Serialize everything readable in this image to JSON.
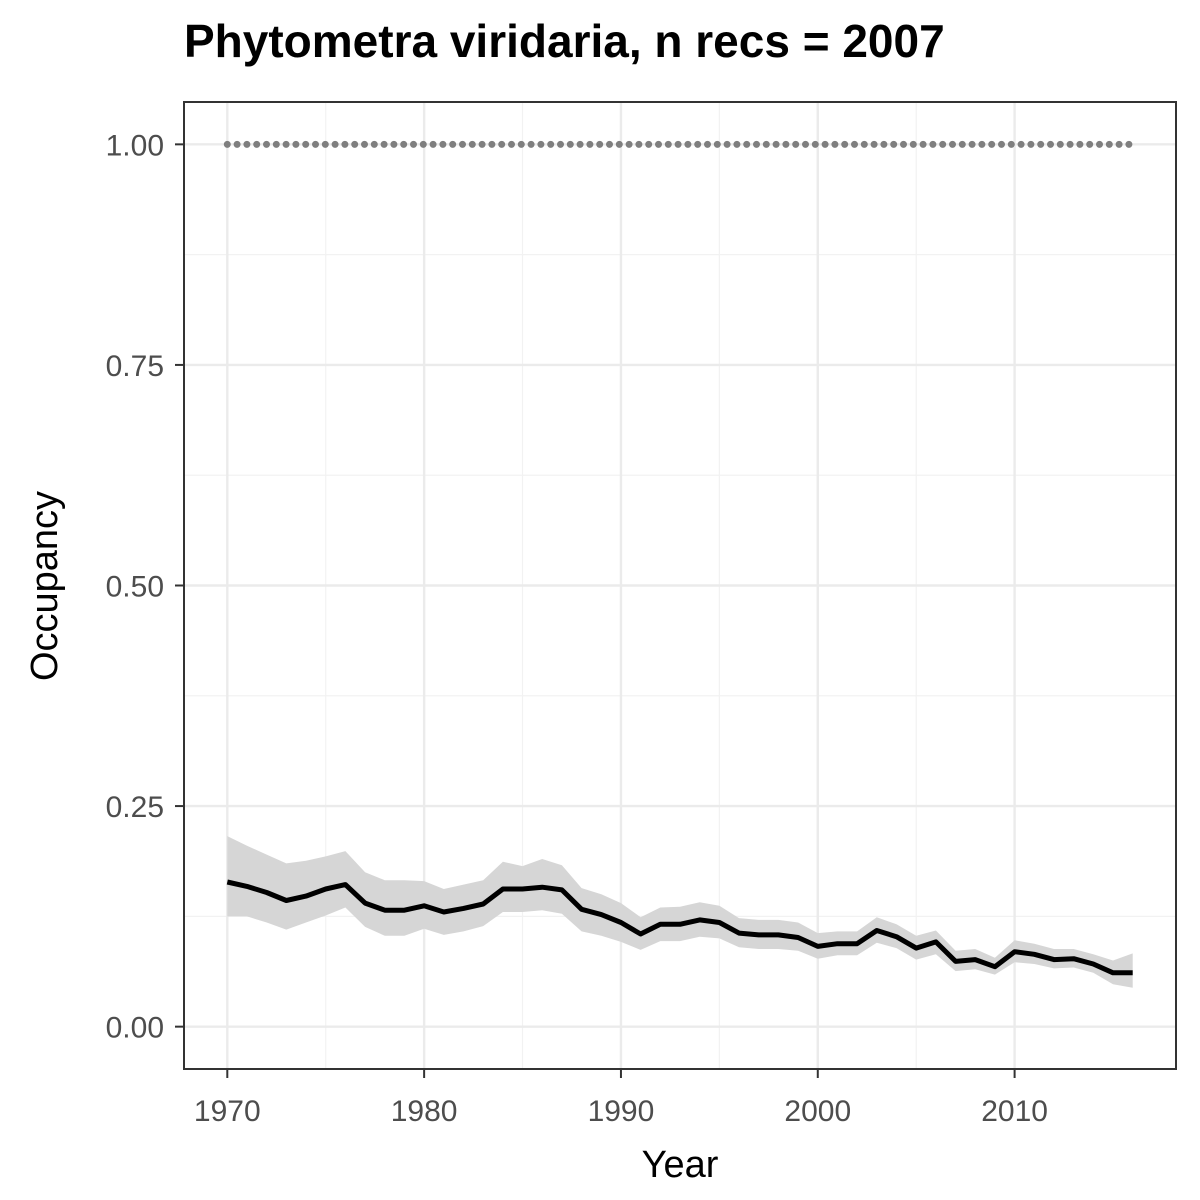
{
  "chart_data": {
    "type": "line",
    "title": "Phytometra viridaria, n recs = 2007",
    "xlabel": "Year",
    "ylabel": "Occupancy",
    "xlim": [
      1967.8,
      2018.2
    ],
    "ylim": [
      -0.048,
      1.048
    ],
    "x_ticks": [
      1970,
      1980,
      1990,
      2000,
      2010
    ],
    "x_tick_labels": [
      "1970",
      "1980",
      "1990",
      "2000",
      "2010"
    ],
    "y_ticks": [
      0,
      0.25,
      0.5,
      0.75,
      1.0
    ],
    "y_tick_labels": [
      "0.00",
      "0.25",
      "0.50",
      "0.75",
      "1.00"
    ],
    "grid": true,
    "x": [
      1970,
      1971,
      1972,
      1973,
      1974,
      1975,
      1976,
      1977,
      1978,
      1979,
      1980,
      1981,
      1982,
      1983,
      1984,
      1985,
      1986,
      1987,
      1988,
      1989,
      1990,
      1991,
      1992,
      1993,
      1994,
      1995,
      1996,
      1997,
      1998,
      1999,
      2000,
      2001,
      2002,
      2003,
      2004,
      2005,
      2006,
      2007,
      2008,
      2009,
      2010,
      2011,
      2012,
      2013,
      2014,
      2015,
      2016
    ],
    "series": [
      {
        "role": "mean",
        "color": "#000000",
        "values": [
          0.164,
          0.159,
          0.152,
          0.143,
          0.148,
          0.156,
          0.161,
          0.14,
          0.132,
          0.132,
          0.137,
          0.13,
          0.134,
          0.139,
          0.156,
          0.156,
          0.158,
          0.155,
          0.133,
          0.127,
          0.118,
          0.105,
          0.116,
          0.116,
          0.121,
          0.118,
          0.106,
          0.104,
          0.104,
          0.101,
          0.091,
          0.094,
          0.094,
          0.109,
          0.102,
          0.089,
          0.096,
          0.074,
          0.076,
          0.068,
          0.085,
          0.082,
          0.076,
          0.077,
          0.071,
          0.061,
          0.061
        ]
      },
      {
        "role": "ci_lower",
        "color": "#d6d6d6",
        "values": [
          0.125,
          0.125,
          0.118,
          0.11,
          0.118,
          0.126,
          0.135,
          0.113,
          0.103,
          0.103,
          0.111,
          0.104,
          0.108,
          0.114,
          0.13,
          0.13,
          0.132,
          0.128,
          0.108,
          0.103,
          0.096,
          0.087,
          0.097,
          0.097,
          0.102,
          0.1,
          0.09,
          0.088,
          0.088,
          0.086,
          0.077,
          0.081,
          0.081,
          0.095,
          0.089,
          0.076,
          0.082,
          0.063,
          0.065,
          0.059,
          0.073,
          0.071,
          0.066,
          0.067,
          0.061,
          0.048,
          0.044
        ]
      },
      {
        "role": "ci_upper",
        "color": "#d6d6d6",
        "values": [
          0.216,
          0.205,
          0.195,
          0.185,
          0.188,
          0.193,
          0.199,
          0.175,
          0.166,
          0.166,
          0.165,
          0.156,
          0.161,
          0.166,
          0.187,
          0.182,
          0.19,
          0.183,
          0.157,
          0.15,
          0.14,
          0.124,
          0.135,
          0.136,
          0.141,
          0.137,
          0.123,
          0.121,
          0.121,
          0.118,
          0.106,
          0.108,
          0.108,
          0.124,
          0.116,
          0.103,
          0.109,
          0.086,
          0.088,
          0.078,
          0.098,
          0.094,
          0.088,
          0.088,
          0.082,
          0.075,
          0.083
        ]
      },
      {
        "role": "reference",
        "color": "#7f7f7f",
        "style": "dotted",
        "values": [
          1,
          1,
          1,
          1,
          1,
          1,
          1,
          1,
          1,
          1,
          1,
          1,
          1,
          1,
          1,
          1,
          1,
          1,
          1,
          1,
          1,
          1,
          1,
          1,
          1,
          1,
          1,
          1,
          1,
          1,
          1,
          1,
          1,
          1,
          1,
          1,
          1,
          1,
          1,
          1,
          1,
          1,
          1,
          1,
          1,
          1,
          1
        ]
      }
    ]
  }
}
